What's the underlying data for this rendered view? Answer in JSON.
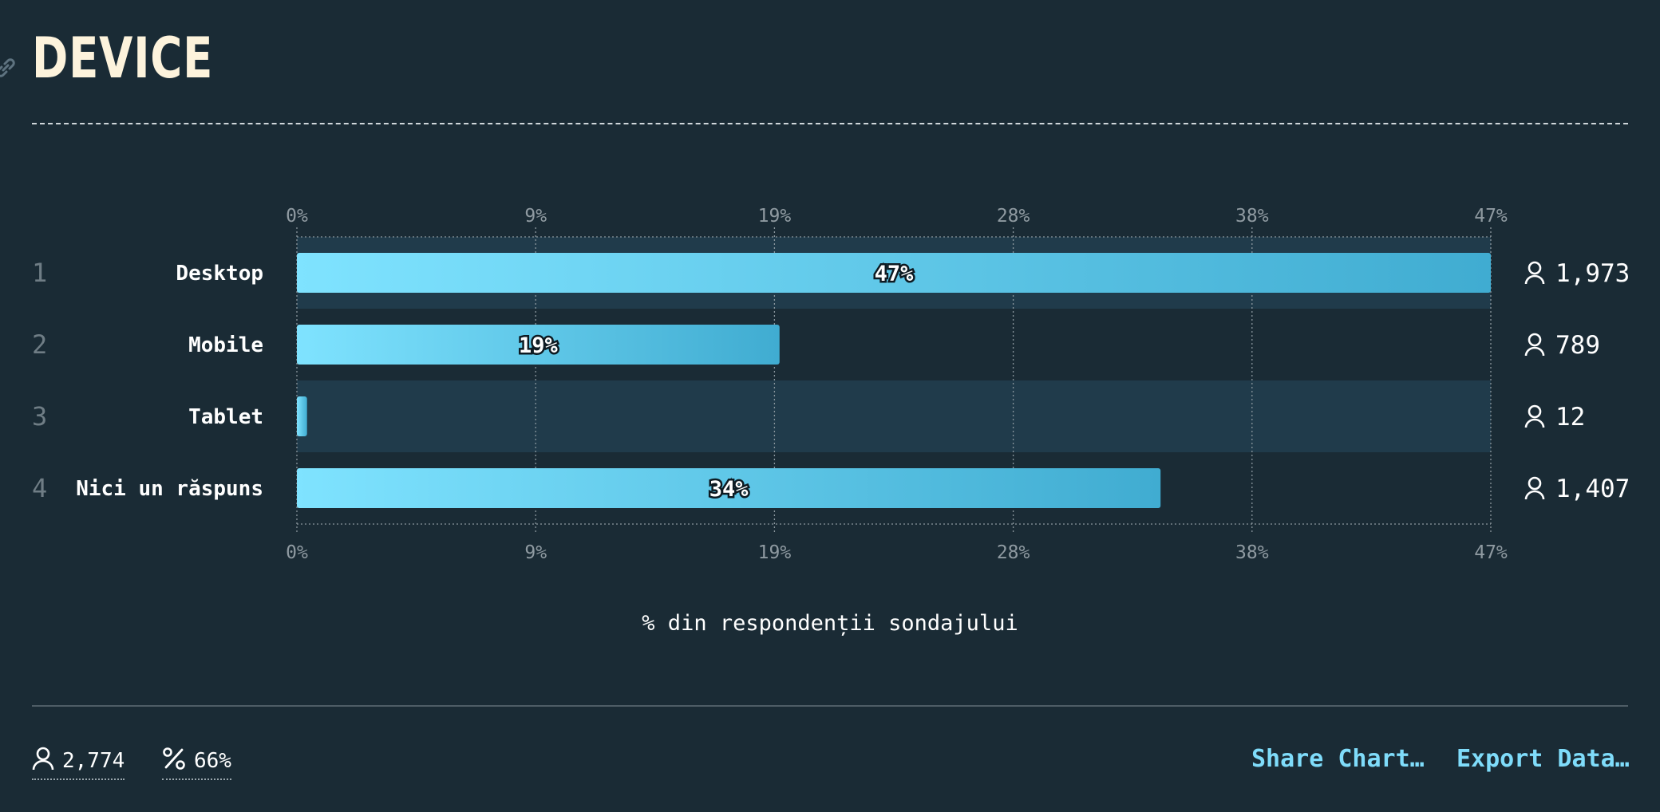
{
  "header": {
    "title": "DEVICE"
  },
  "chart_data": {
    "type": "bar",
    "orientation": "horizontal",
    "title": "DEVICE",
    "xlabel": "% din respondenții sondajului",
    "ylabel": "",
    "xlim": [
      0,
      47
    ],
    "tick_labels": [
      "0%",
      "9%",
      "19%",
      "28%",
      "38%",
      "47%"
    ],
    "grid": true,
    "categories": [
      "Desktop",
      "Mobile",
      "Tablet",
      "Nici un răspuns"
    ],
    "ranks": [
      "1",
      "2",
      "3",
      "4"
    ],
    "values": [
      47,
      19,
      0.4,
      34
    ],
    "value_labels": [
      "47%",
      "19%",
      "",
      "34%"
    ],
    "counts": [
      "1,973",
      "789",
      "12",
      "1,407"
    ],
    "bar_color": "#4bb6d9",
    "bar_gradient": [
      "#7fe3ff",
      "#40acd1"
    ]
  },
  "footer": {
    "respondents": "2,774",
    "percent": "66%",
    "share_label": "Share Chart…",
    "export_label": "Export Data…"
  },
  "colors": {
    "background": "#1a2b35",
    "stripe": "#203b4b",
    "title": "#fdf3dc",
    "accent": "#7fdcfa"
  },
  "icons": [
    "link-icon",
    "user-icon",
    "percent-icon"
  ]
}
